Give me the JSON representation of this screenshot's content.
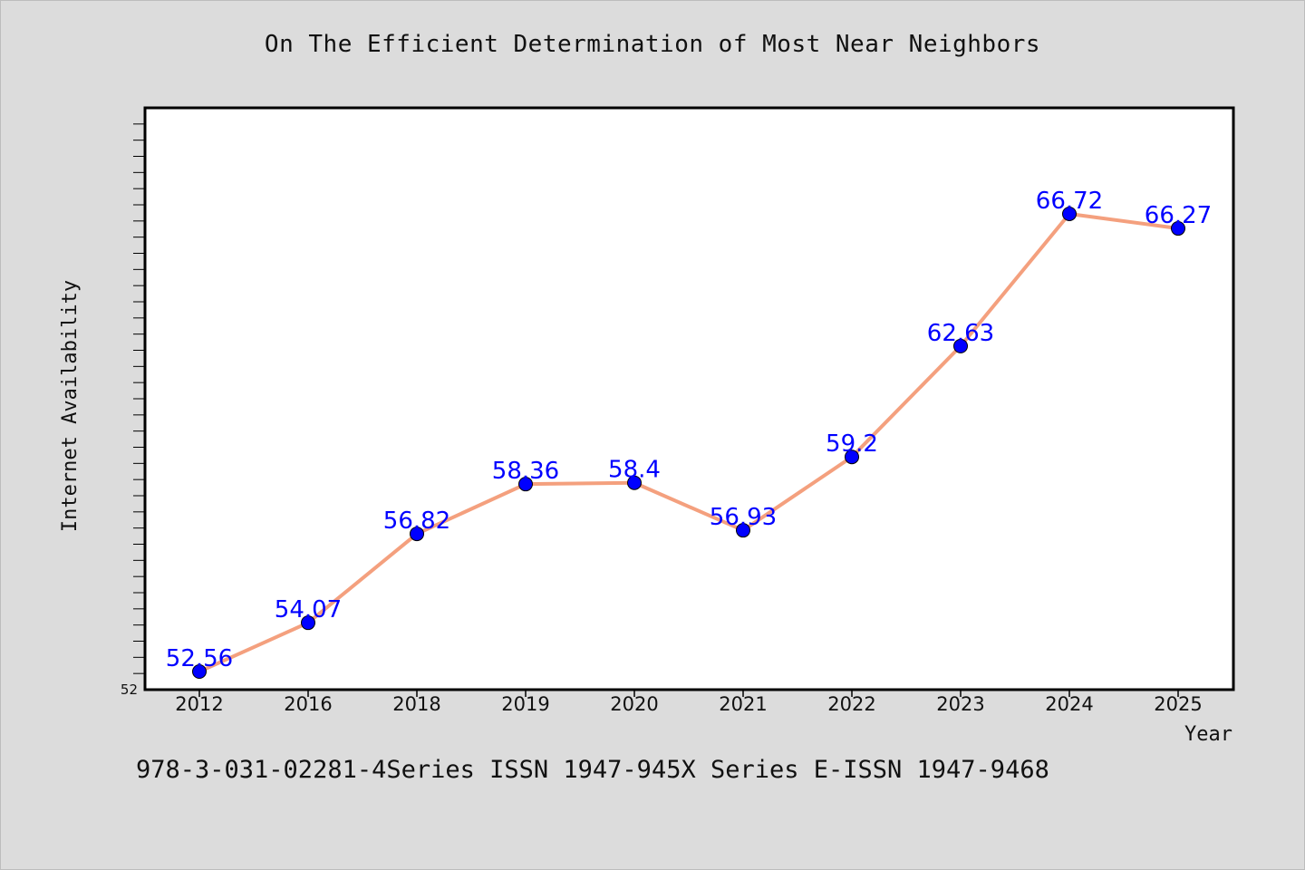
{
  "title": "On The Efficient Determination of Most Near Neighbors",
  "footer": "978-3-031-02281-4Series ISSN 1947-945X Series E-ISSN 1947-9468",
  "colors": {
    "background": "#dcdcdc",
    "plot_background": "#ffffff",
    "line": "#f4a07e",
    "marker": "#0000ff",
    "data_label": "#0000ff"
  },
  "chart_data": {
    "type": "line",
    "title": "On The Efficient Determination of Most Near Neighbors",
    "xlabel": "Year",
    "ylabel": "Internet Availability",
    "categories": [
      "2012",
      "2016",
      "2018",
      "2019",
      "2020",
      "2021",
      "2022",
      "2023",
      "2024",
      "2025"
    ],
    "series": [
      {
        "values": [
          52.56,
          54.07,
          56.82,
          58.36,
          58.4,
          56.93,
          59.2,
          62.63,
          66.72,
          66.27
        ],
        "labels": [
          "52.56",
          "54.07",
          "56.82",
          "58.36",
          "58.4",
          "56.93",
          "59.2",
          "62.63",
          "66.72",
          "66.27"
        ]
      }
    ],
    "ylim": [
      52,
      70
    ],
    "y_tick_labels": [
      "52"
    ],
    "grid": false,
    "legend": "none"
  }
}
